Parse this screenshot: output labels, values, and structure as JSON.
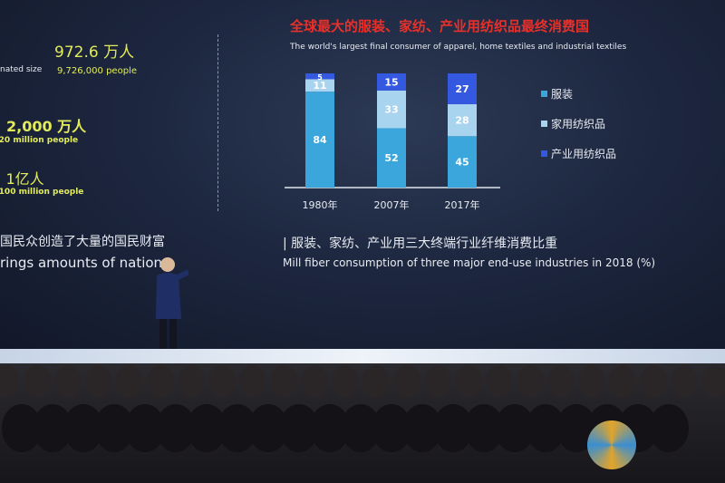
{
  "left_panel": {
    "label_partial": "nated size",
    "stat1_cn": "972.6 万人",
    "stat1_en": "9,726,000 people",
    "stat2_cn": "≈ 2,000 万人",
    "stat2_en": "≈ 20 million people",
    "stat3_cn": "≈ 1亿人",
    "stat3_en": "≈ 100 million people",
    "caption_cn": "国民众创造了大量的国民财富",
    "caption_en": "rings amounts of nation"
  },
  "right_panel": {
    "title_cn": "全球最大的服装、家纺、产业用纺织品最终消费国",
    "title_en": "The world's largest final consumer of apparel, home textiles and industrial textiles",
    "caption_cn": "| 服装、家纺、产业用三大终端行业纤维消费比重",
    "caption_en": "Mill fiber consumption of three major end-use industries in 2018 (%)"
  },
  "chart_data": {
    "type": "bar",
    "stacked": true,
    "categories": [
      "1980年",
      "2007年",
      "2017年"
    ],
    "series": [
      {
        "name": "服装",
        "values": [
          84,
          52,
          45
        ],
        "color": "#3aa6dc"
      },
      {
        "name": "家用纺织品",
        "values": [
          11,
          33,
          28
        ],
        "color": "#a9d4f0"
      },
      {
        "name": "产业用纺织品",
        "values": [
          5,
          15,
          27
        ],
        "color": "#3558e0"
      }
    ],
    "ylim": [
      0,
      100
    ],
    "legend": "right",
    "grid": false
  },
  "colors": {
    "highlight": "#e2ec5a",
    "title_red": "#e8302a"
  }
}
